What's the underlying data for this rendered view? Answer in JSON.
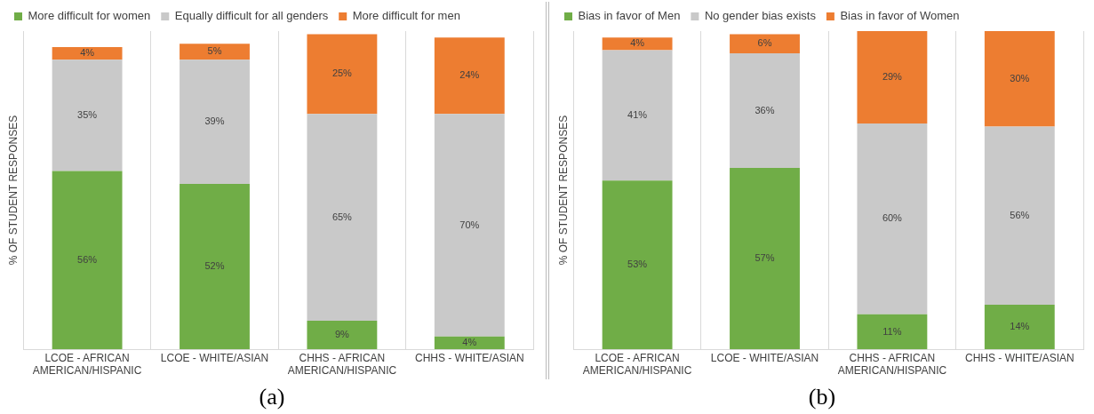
{
  "chart_data": [
    {
      "type": "bar",
      "stacked": true,
      "ylabel": "% OF STUDENT RESPONSES",
      "categories": [
        "LCOE - AFRICAN AMERICAN/HISPANIC",
        "LCOE - WHITE/ASIAN",
        "CHHS - AFRICAN AMERICAN/HISPANIC",
        "CHHS - WHITE/ASIAN"
      ],
      "series": [
        {
          "name": "More difficult for women",
          "color": "#70ad47",
          "values": [
            56,
            52,
            9,
            4
          ],
          "value_labels": [
            "56%",
            "52%",
            "9%",
            "4%"
          ]
        },
        {
          "name": "Equally difficult for all genders",
          "color": "#c9c9c9",
          "values": [
            35,
            39,
            65,
            70
          ],
          "value_labels": [
            "35%",
            "39%",
            "65%",
            "70%"
          ]
        },
        {
          "name": "More difficult for men",
          "color": "#ed7d31",
          "values": [
            4,
            5,
            25,
            24
          ],
          "value_labels": [
            "4%",
            "5%",
            "25%",
            "24%"
          ]
        }
      ],
      "legend": "top left",
      "grid": "x",
      "tick_labels": "x",
      "annotations": [
        "(a)"
      ]
    },
    {
      "type": "bar",
      "stacked": true,
      "ylabel": "% OF STUDENT RESPONSES",
      "categories": [
        "LCOE - AFRICAN AMERICAN/HISPANIC",
        "LCOE - WHITE/ASIAN",
        "CHHS - AFRICAN AMERICAN/HISPANIC",
        "CHHS - WHITE/ASIAN"
      ],
      "series": [
        {
          "name": "Bias in favor of Men",
          "color": "#70ad47",
          "values": [
            53,
            57,
            11,
            14
          ],
          "value_labels": [
            "53%",
            "57%",
            "11%",
            "14%"
          ]
        },
        {
          "name": "No gender bias exists",
          "color": "#c9c9c9",
          "values": [
            41,
            36,
            60,
            56
          ],
          "value_labels": [
            "41%",
            "36%",
            "60%",
            "56%"
          ]
        },
        {
          "name": "Bias in favor of Women",
          "color": "#ed7d31",
          "values": [
            4,
            6,
            29,
            30
          ],
          "value_labels": [
            "4%",
            "6%",
            "29%",
            "30%"
          ]
        }
      ],
      "legend": "top left",
      "grid": "x",
      "tick_labels": "x",
      "annotations": [
        "(b)"
      ]
    }
  ]
}
